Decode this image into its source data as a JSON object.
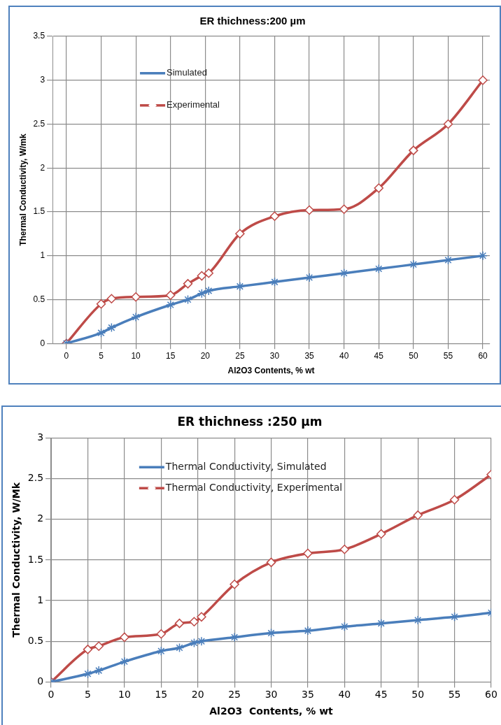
{
  "chart_data": [
    {
      "type": "line",
      "title": "ER thichness:200 µm",
      "xlabel": "Al2O3 Contents, % wt",
      "ylabel": "Thermal Conductivity, W/mk",
      "x": [
        0,
        5,
        6.5,
        10,
        15,
        17.5,
        19.5,
        20.5,
        25,
        30,
        35,
        40,
        45,
        50,
        55,
        60
      ],
      "series": [
        {
          "name": "Simulated",
          "color": "#4a7ebb",
          "marker": "cross",
          "values": [
            0,
            0.12,
            0.18,
            0.3,
            0.44,
            0.5,
            0.57,
            0.6,
            0.65,
            0.7,
            0.75,
            0.8,
            0.85,
            0.9,
            0.95,
            1.0
          ]
        },
        {
          "name": "Experimental",
          "color": "#be4b48",
          "marker": "diamond",
          "values": [
            0,
            0.45,
            0.51,
            0.53,
            0.55,
            0.68,
            0.77,
            0.8,
            1.25,
            1.45,
            1.52,
            1.53,
            1.77,
            2.2,
            2.5,
            3.0
          ]
        }
      ],
      "xlim": [
        -2,
        61
      ],
      "xticks": [
        0,
        5,
        10,
        15,
        20,
        25,
        30,
        35,
        40,
        45,
        50,
        55,
        60
      ],
      "ylim": [
        0,
        3.5
      ],
      "yticks": [
        0,
        0.5,
        1,
        1.5,
        2,
        2.5,
        3,
        3.5
      ],
      "grid": true,
      "legend": "top left"
    },
    {
      "type": "line",
      "title": "ER thichness :250 µm",
      "xlabel": "Al2O3  Contents, % wt",
      "ylabel": "Thermal Conductivity, W/Mk",
      "x": [
        0,
        5,
        6.5,
        10,
        15,
        17.5,
        19.5,
        20.5,
        25,
        30,
        35,
        40,
        45,
        50,
        55,
        60
      ],
      "series": [
        {
          "name": "Thermal Conductivity, Simulated",
          "color": "#4a7ebb",
          "marker": "cross",
          "values": [
            0,
            0.1,
            0.14,
            0.25,
            0.38,
            0.42,
            0.48,
            0.5,
            0.55,
            0.6,
            0.63,
            0.68,
            0.72,
            0.76,
            0.8,
            0.85
          ]
        },
        {
          "name": "Thermal Conductivity, Experimental",
          "color": "#be4b48",
          "marker": "diamond",
          "values": [
            0,
            0.4,
            0.44,
            0.55,
            0.59,
            0.72,
            0.74,
            0.8,
            1.2,
            1.47,
            1.58,
            1.63,
            1.82,
            2.05,
            2.24,
            2.55
          ]
        }
      ],
      "xlim": [
        0,
        60
      ],
      "xticks": [
        0,
        5,
        10,
        15,
        20,
        25,
        30,
        35,
        40,
        45,
        50,
        55,
        60
      ],
      "ylim": [
        0,
        3
      ],
      "yticks": [
        0,
        0.5,
        1,
        1.5,
        2,
        2.5,
        3
      ],
      "grid": true,
      "legend": "top left"
    }
  ]
}
